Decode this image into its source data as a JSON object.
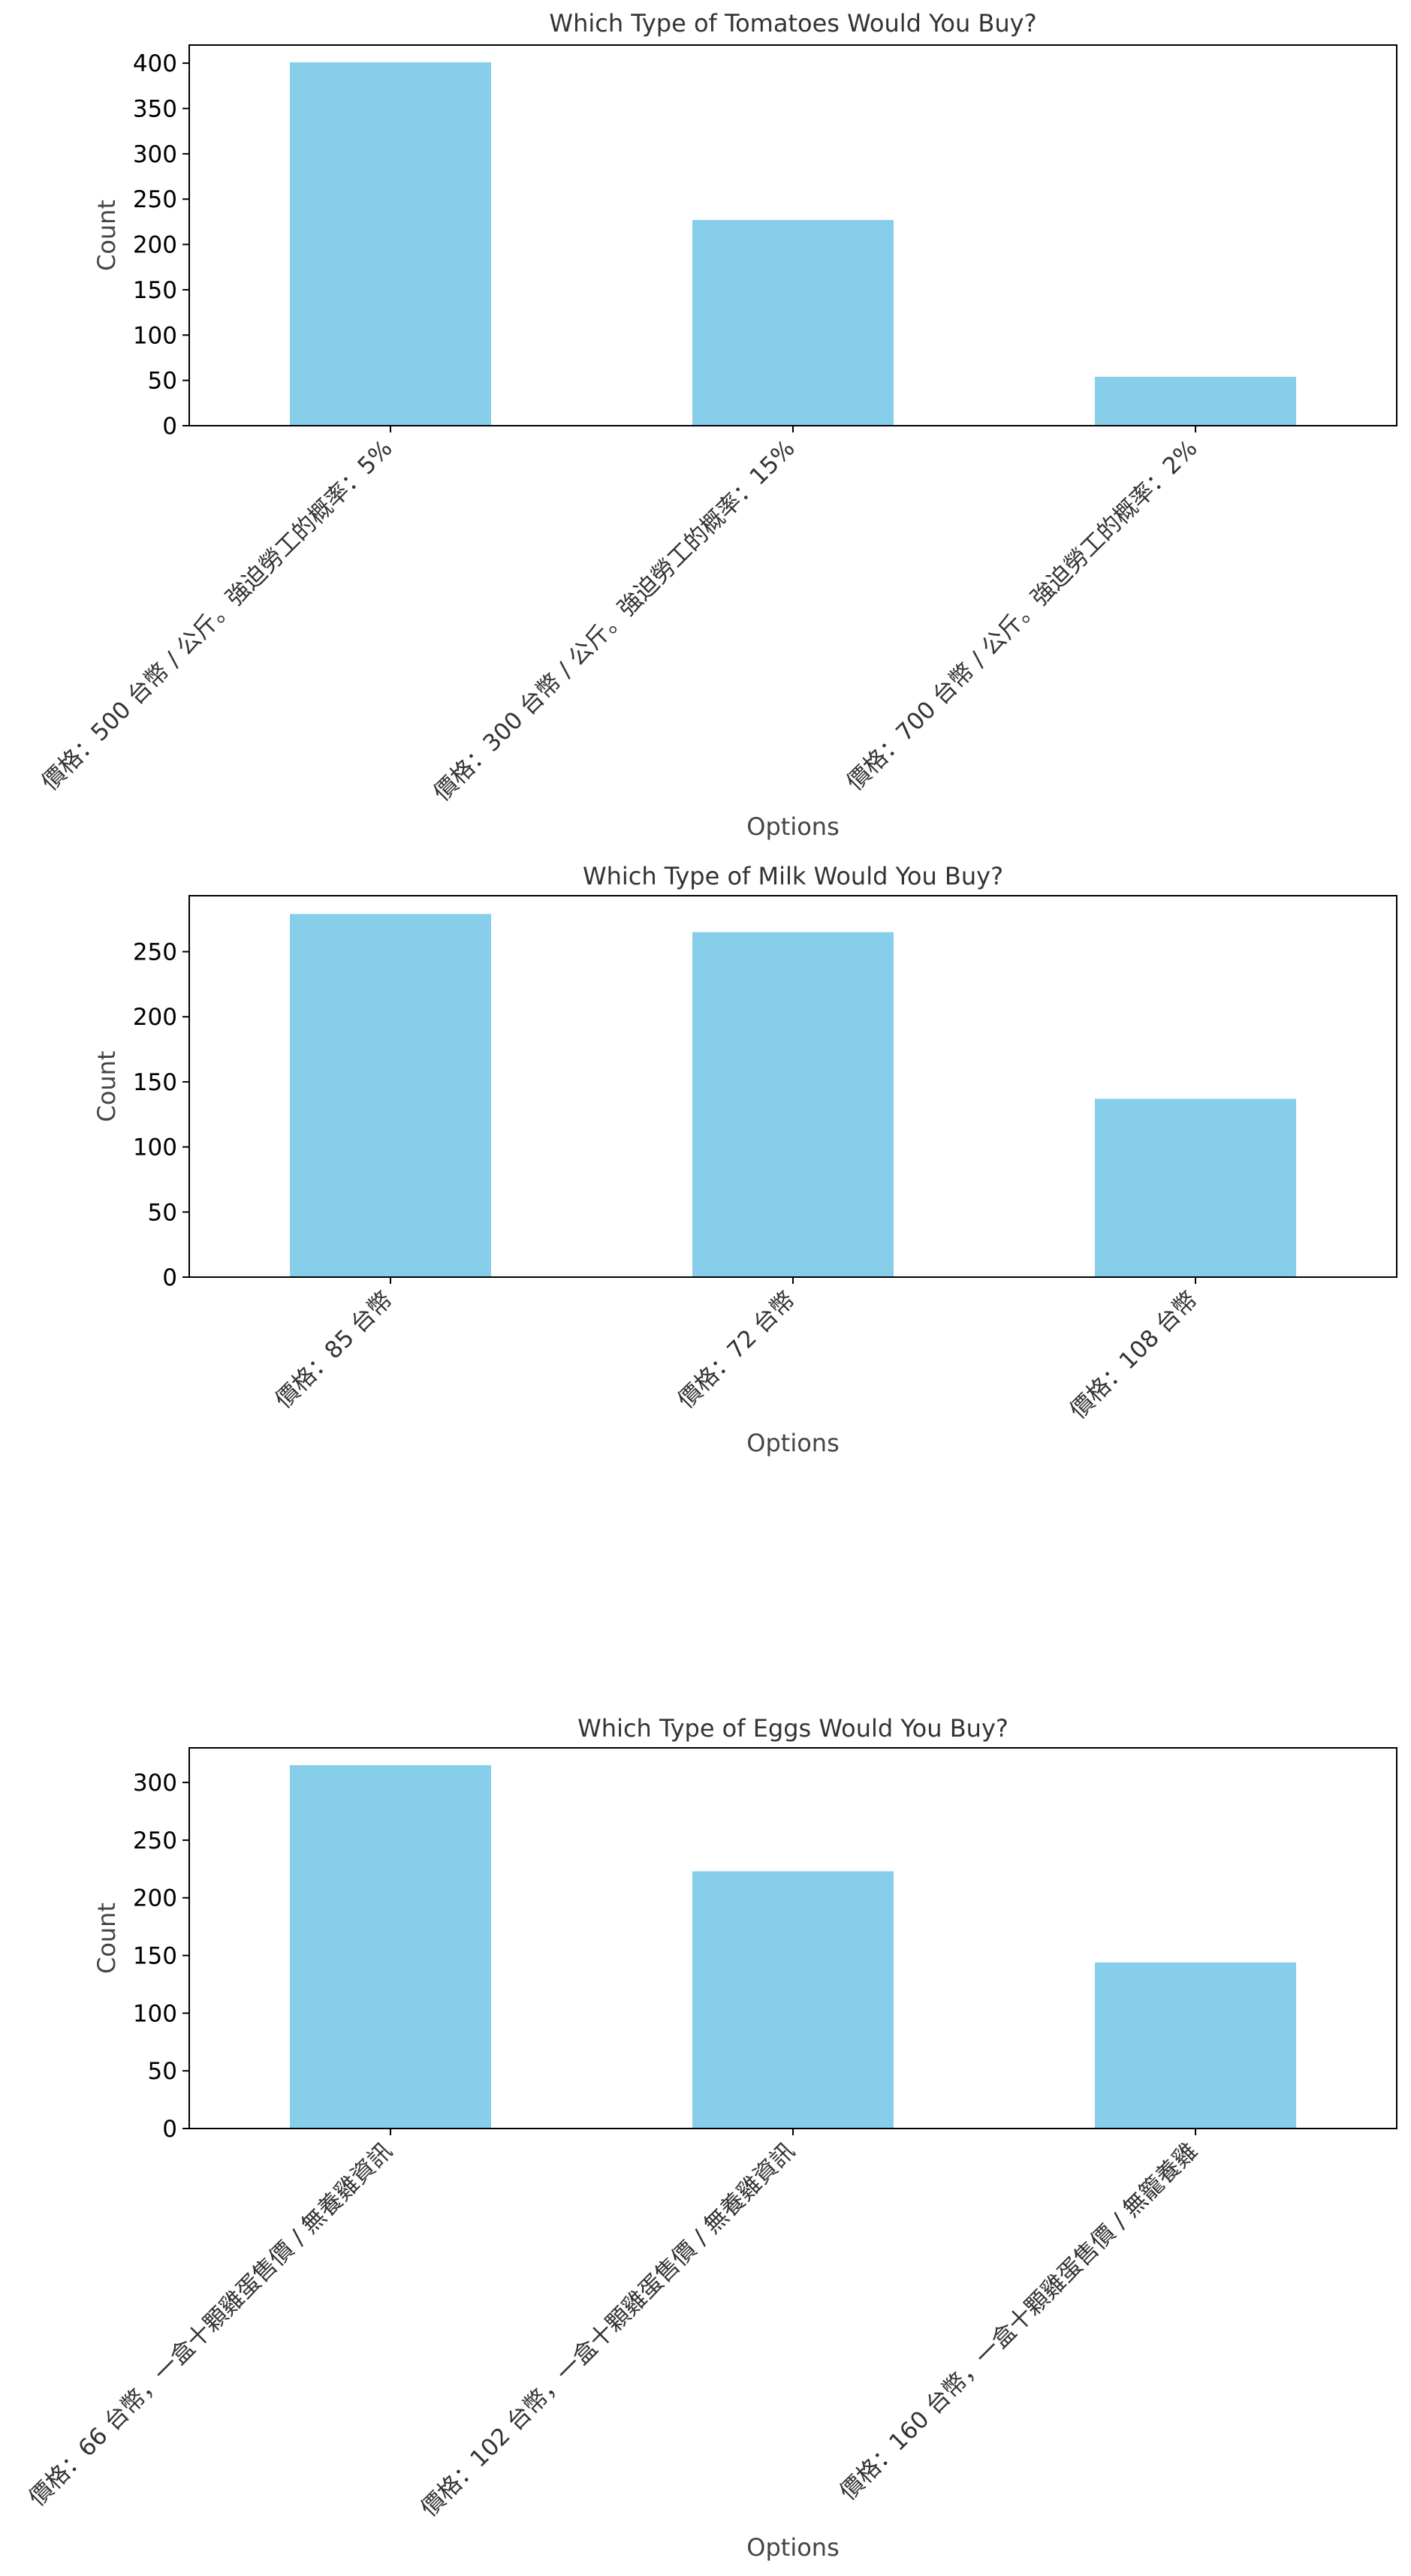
{
  "chart_data": [
    {
      "type": "bar",
      "title": "Which Type of Tomatoes Would You Buy?",
      "xlabel": "Options",
      "ylabel": "Count",
      "categories": [
        "價格：500 台幣 / 公斤。強迫勞工的概率：5%",
        "價格：300 台幣 / 公斤。強迫勞工的概率：15%",
        "價格：700 台幣 / 公斤。強迫勞工的概率：2%"
      ],
      "values": [
        401,
        227,
        54
      ],
      "ylim": [
        0,
        420
      ],
      "yticks": [
        0,
        50,
        100,
        150,
        200,
        250,
        300,
        350,
        400
      ],
      "bar_color": "#87CEEB",
      "grid": false
    },
    {
      "type": "bar",
      "title": "Which Type of Milk Would You Buy?",
      "xlabel": "Options",
      "ylabel": "Count",
      "categories": [
        "價格：85 台幣",
        "價格：72 台幣",
        "價格：108 台幣"
      ],
      "values": [
        279,
        265,
        137
      ],
      "ylim": [
        0,
        293
      ],
      "yticks": [
        0,
        50,
        100,
        150,
        200,
        250
      ],
      "bar_color": "#87CEEB",
      "grid": false
    },
    {
      "type": "bar",
      "title": "Which Type of Eggs Would You Buy?",
      "xlabel": "Options",
      "ylabel": "Count",
      "categories": [
        "價格：66 台幣，一盒十顆雞蛋售價 / 無養雞資訊",
        "價格：102 台幣，一盒十顆雞蛋售價 / 無養雞資訊",
        "價格：160 台幣，一盒十顆雞蛋售價 / 無籠養雞"
      ],
      "values": [
        315,
        223,
        144
      ],
      "ylim": [
        0,
        330
      ],
      "yticks": [
        0,
        50,
        100,
        150,
        200,
        250,
        300
      ],
      "bar_color": "#87CEEB",
      "grid": false
    }
  ]
}
